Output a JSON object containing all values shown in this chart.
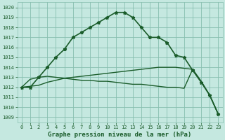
{
  "title": "Graphe pression niveau de la mer (hPa)",
  "bg_color": "#c5e8e0",
  "grid_color": "#88bfb0",
  "line_color": "#1a5c2a",
  "xlim": [
    -0.5,
    23.5
  ],
  "ylim": [
    1008.5,
    1020.5
  ],
  "yticks": [
    1009,
    1010,
    1011,
    1012,
    1013,
    1014,
    1015,
    1016,
    1017,
    1018,
    1019,
    1020
  ],
  "xticks": [
    0,
    1,
    2,
    3,
    4,
    5,
    6,
    7,
    8,
    9,
    10,
    11,
    12,
    13,
    14,
    15,
    16,
    17,
    18,
    19,
    20,
    21,
    22,
    23
  ],
  "main_line_x": [
    0,
    1,
    2,
    3,
    4,
    5,
    6,
    7,
    8,
    9,
    10,
    11,
    12,
    13,
    14,
    15,
    16,
    17,
    18,
    19,
    20,
    21,
    22,
    23
  ],
  "main_line_y": [
    1012,
    1012,
    1013,
    1014,
    1015,
    1015.8,
    1017,
    1017.5,
    1018,
    1018.5,
    1019,
    1019.5,
    1019.5,
    1019,
    1018,
    1017,
    1017,
    1016.5,
    1015.2,
    1015,
    1013.7,
    1012.5,
    1011.2,
    1009.3
  ],
  "flat_line1_x": [
    0,
    1,
    2,
    3,
    4,
    5,
    6,
    7,
    8,
    9,
    10,
    11,
    12,
    13,
    14,
    15,
    16,
    17,
    18,
    19,
    20,
    21,
    22,
    23
  ],
  "flat_line1_y": [
    1012,
    1012.1,
    1012.2,
    1012.5,
    1012.7,
    1012.9,
    1013.0,
    1013.1,
    1013.2,
    1013.3,
    1013.4,
    1013.5,
    1013.6,
    1013.7,
    1013.8,
    1013.9,
    1014.0,
    1014.0,
    1014.0,
    1013.9,
    1013.8,
    1012.6,
    1011.2,
    1009.3
  ],
  "flat_line2_x": [
    0,
    1,
    2,
    3,
    4,
    5,
    6,
    7,
    8,
    9,
    10,
    11,
    12,
    13,
    14,
    15,
    16,
    17,
    18,
    19,
    20,
    21,
    22,
    23
  ],
  "flat_line2_y": [
    1012,
    1012.8,
    1013.0,
    1013.1,
    1013.0,
    1012.9,
    1012.8,
    1012.7,
    1012.7,
    1012.6,
    1012.6,
    1012.5,
    1012.4,
    1012.3,
    1012.3,
    1012.2,
    1012.1,
    1012.0,
    1012.0,
    1011.9,
    1013.8,
    1012.6,
    1011.2,
    1009.3
  ],
  "ylabel_fontsize": 5.5,
  "xlabel_fontsize": 6.5,
  "tick_fontsize": 5
}
